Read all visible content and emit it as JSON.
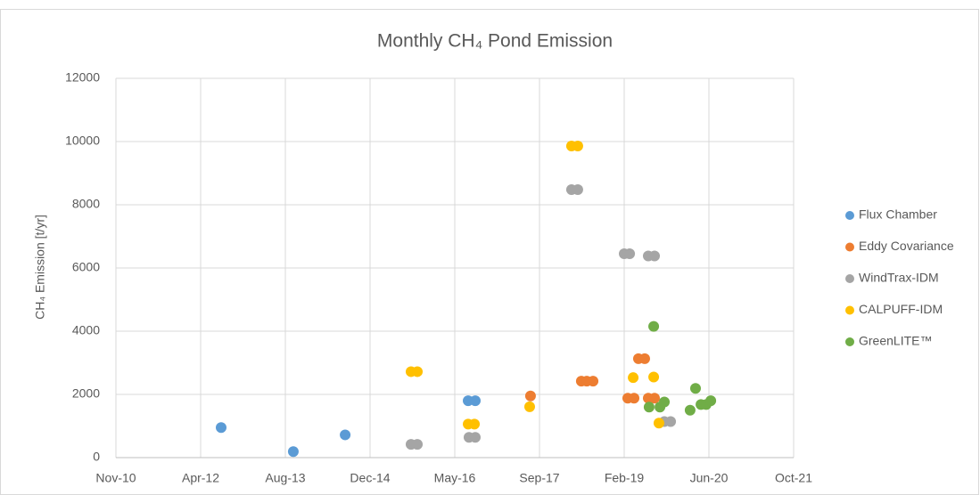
{
  "chart_data": {
    "type": "scatter",
    "title": "Monthly CH₄ Pond Emission",
    "y_label": "CH₄ Emission [t/yr]",
    "xlim": [
      40500,
      44500
    ],
    "xticks": [
      {
        "value": 40500,
        "label": "Nov-10"
      },
      {
        "value": 41000,
        "label": "Apr-12"
      },
      {
        "value": 41500,
        "label": "Aug-13"
      },
      {
        "value": 42000,
        "label": "Dec-14"
      },
      {
        "value": 42500,
        "label": "May-16"
      },
      {
        "value": 43000,
        "label": "Sep-17"
      },
      {
        "value": 43500,
        "label": "Feb-19"
      },
      {
        "value": 44000,
        "label": "Jun-20"
      },
      {
        "value": 44500,
        "label": "Oct-21"
      }
    ],
    "ylim": [
      0,
      12000
    ],
    "yticks": [
      0,
      2000,
      4000,
      6000,
      8000,
      10000,
      12000
    ],
    "grid": true,
    "legend": "right",
    "series": [
      {
        "name": "Flux Chamber",
        "color": "#5b9bd5",
        "x": [
          41121,
          41547,
          41853,
          42579,
          42621
        ],
        "values": [
          950,
          190,
          720,
          1800,
          1800
        ]
      },
      {
        "name": "Eddy Covariance",
        "color": "#ed7d31",
        "x": [
          42947,
          43247,
          43279,
          43316,
          43521,
          43558,
          43584,
          43621,
          43642,
          43679
        ],
        "values": [
          1950,
          2420,
          2420,
          2420,
          1880,
          1880,
          3130,
          3130,
          1880,
          1880
        ]
      },
      {
        "name": "WindTrax-IDM",
        "color": "#a5a5a5",
        "x": [
          42242,
          42279,
          42584,
          42621,
          43189,
          43226,
          43500,
          43532,
          43642,
          43679,
          43737,
          43774
        ],
        "values": [
          420,
          420,
          640,
          640,
          8480,
          8480,
          6450,
          6450,
          6380,
          6380,
          1140,
          1140
        ]
      },
      {
        "name": "CALPUFF-IDM",
        "color": "#ffc000",
        "x": [
          42242,
          42279,
          42579,
          42616,
          42942,
          43189,
          43226,
          43553,
          43674,
          43705
        ],
        "values": [
          2720,
          2720,
          1060,
          1060,
          1610,
          9860,
          9860,
          2530,
          2550,
          1090
        ]
      },
      {
        "name": "GreenLITE™",
        "color": "#70ad47",
        "x": [
          43674,
          43647,
          43711,
          43737,
          43889,
          43921,
          43953,
          43984,
          44011
        ],
        "values": [
          4150,
          1600,
          1600,
          1760,
          1500,
          2190,
          1680,
          1680,
          1800
        ]
      }
    ]
  }
}
